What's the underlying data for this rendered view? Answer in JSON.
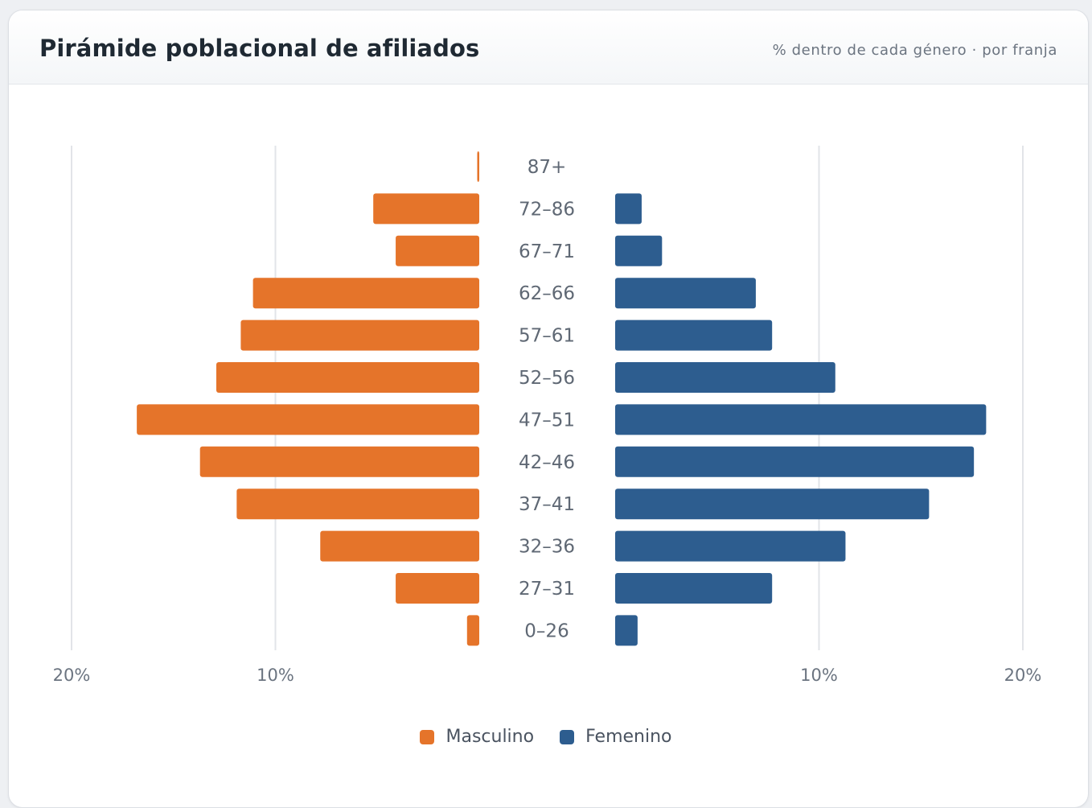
{
  "header": {
    "title": "Pirámide poblacional de afiliados",
    "subtitle": "% dentro de cada género · por franja"
  },
  "colors": {
    "masculino": "#e5742a",
    "femenino": "#2d5d8f",
    "grid": "#e2e4e8",
    "text": "#5f6874"
  },
  "legend": [
    {
      "label": "Masculino",
      "color": "#e5742a"
    },
    {
      "label": "Femenino",
      "color": "#2d5d8f"
    }
  ],
  "chart_data": {
    "type": "bar",
    "orientation": "horizontal-population-pyramid",
    "categories": [
      "87+",
      "72–86",
      "67–71",
      "62–66",
      "57–61",
      "52–56",
      "47–51",
      "42–46",
      "37–41",
      "32–36",
      "27–31",
      "0–26"
    ],
    "series": [
      {
        "name": "Masculino",
        "values": [
          0.1,
          5.2,
          4.1,
          11.1,
          11.7,
          12.9,
          16.8,
          13.7,
          11.9,
          7.8,
          4.1,
          0.6
        ]
      },
      {
        "name": "Femenino",
        "values": [
          0.0,
          1.3,
          2.3,
          6.9,
          7.7,
          10.8,
          18.2,
          17.6,
          15.4,
          11.3,
          7.7,
          1.1
        ]
      }
    ],
    "xlim": [
      0,
      20
    ],
    "ticks": [
      10,
      20
    ],
    "tick_labels": [
      "10%",
      "20%"
    ],
    "grid": true,
    "legend_position": "bottom-center"
  }
}
